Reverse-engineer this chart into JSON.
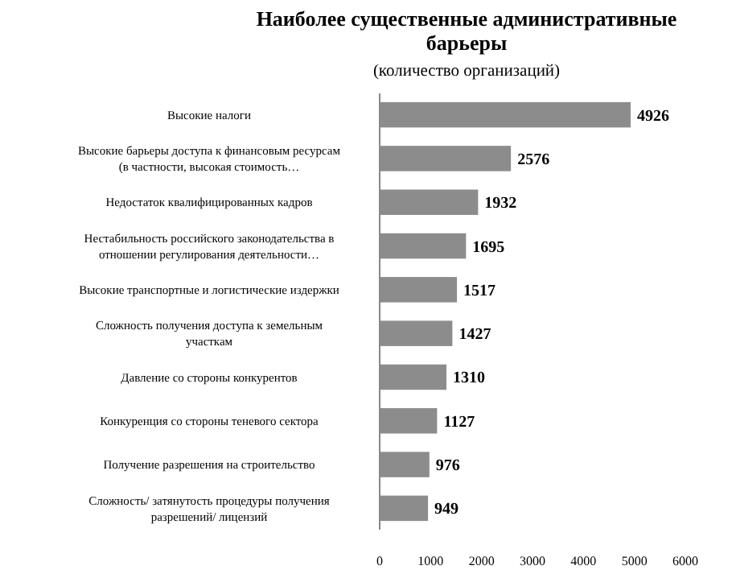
{
  "chart_data": {
    "type": "bar",
    "orientation": "horizontal",
    "title": "Наиболее существенные административные барьеры",
    "subtitle": "(количество организаций)",
    "categories": [
      "Высокие налоги",
      "Высокие барьеры доступа к финансовым ресурсам (в частности, высокая стоимость…",
      "Недостаток квалифицированных кадров",
      "Нестабильность российского законодательства в отношении регулирования деятельности…",
      "Высокие транспортные и логистические издержки",
      "Сложность получения доступа к земельным участкам",
      "Давление со стороны конкурентов",
      "Конкуренция со стороны теневого сектора",
      "Получение разрешения на строительство",
      "Сложность/ затянутость процедуры получения разрешений/ лицензий"
    ],
    "values": [
      4926,
      2576,
      1932,
      1695,
      1517,
      1427,
      1310,
      1127,
      976,
      949
    ],
    "color": "#8c8c8c",
    "xlim": [
      0,
      6000
    ],
    "xticks": [
      0,
      1000,
      2000,
      3000,
      4000,
      5000,
      6000
    ],
    "data_labels": true,
    "grid": false
  }
}
